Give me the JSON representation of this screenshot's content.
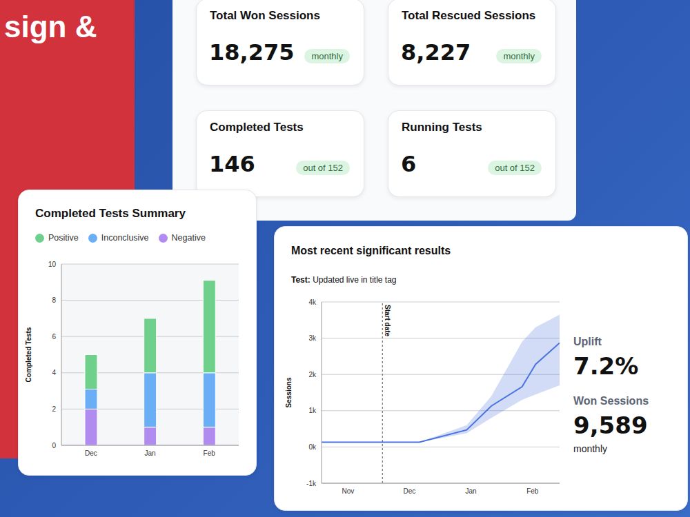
{
  "banner_text": "sign &",
  "cards": [
    {
      "title": "Total Won Sessions",
      "value": "18,275",
      "badge": "monthly"
    },
    {
      "title": "Total Rescued Sessions",
      "value": "8,227",
      "badge": "monthly"
    },
    {
      "title": "Completed Tests",
      "value": "146",
      "badge": "out of 152"
    },
    {
      "title": "Running Tests",
      "value": "6",
      "badge": "out of 152"
    }
  ],
  "chart_data": [
    {
      "type": "bar",
      "title": "Completed Tests Summary",
      "y_label": "Completed Tests",
      "categories": [
        "Dec",
        "Jan",
        "Feb"
      ],
      "series": [
        {
          "name": "Positive",
          "color": "#6fd08c",
          "values": [
            1.9,
            3,
            5.1
          ]
        },
        {
          "name": "Inconclusive",
          "color": "#6aaff5",
          "values": [
            1.1,
            3,
            3
          ]
        },
        {
          "name": "Negative",
          "color": "#b18cf0",
          "values": [
            2,
            1,
            1
          ]
        }
      ],
      "stacked": true,
      "ylim": [
        0,
        10
      ],
      "yticks": [
        0,
        2,
        4,
        6,
        8,
        10
      ],
      "grid": true,
      "legend": "top-left"
    },
    {
      "type": "line",
      "title": "Most recent significant results",
      "subtitle_label": "Test:",
      "subtitle": "Updated live in title tag",
      "y_label": "Sessions",
      "x": [
        -0.43,
        1.16,
        1.93,
        2.33,
        2.83,
        3.05,
        3.44
      ],
      "series": [
        {
          "color": "#4a72e0",
          "values": [
            130,
            130,
            470,
            1130,
            1660,
            2280,
            2870
          ],
          "band_lower": [
            130,
            130,
            380,
            800,
            1300,
            1450,
            1700
          ],
          "band_upper": [
            130,
            130,
            600,
            1400,
            2900,
            3300,
            3650
          ]
        }
      ],
      "xlim": [
        -0.43,
        3.44
      ],
      "xticks": [
        {
          "value": 0,
          "label": "Nov"
        },
        {
          "value": 1,
          "label": "Dec"
        },
        {
          "value": 2,
          "label": "Jan"
        },
        {
          "value": 3,
          "label": "Feb"
        }
      ],
      "ylim": [
        -1000,
        4000
      ],
      "yticks": [
        {
          "value": -1000,
          "label": "-1k"
        },
        {
          "value": 0,
          "label": "0k"
        },
        {
          "value": 1000,
          "label": "1k"
        },
        {
          "value": 2000,
          "label": "2k"
        },
        {
          "value": 3000,
          "label": "3k"
        },
        {
          "value": 4000,
          "label": "4k"
        }
      ],
      "grid": true,
      "annotations": [
        {
          "x": 0.56,
          "text": "Start date"
        }
      ],
      "stats": [
        {
          "label": "Uplift",
          "value": "7.2%"
        },
        {
          "label": "Won Sessions",
          "value": "9,589",
          "unit": "monthly"
        }
      ]
    }
  ]
}
